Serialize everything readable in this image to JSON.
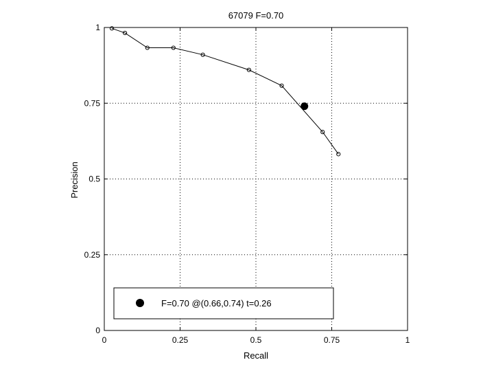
{
  "chart_data": {
    "type": "line",
    "title": "67079 F=0.70",
    "xlabel": "Recall",
    "ylabel": "Precision",
    "xlim": [
      0,
      1
    ],
    "ylim": [
      0,
      1
    ],
    "xticks": [
      0,
      0.25,
      0.5,
      0.75,
      1
    ],
    "yticks": [
      0,
      0.25,
      0.5,
      0.75,
      1
    ],
    "xtick_labels": [
      "0",
      "0.25",
      "0.5",
      "0.75",
      "1"
    ],
    "ytick_labels": [
      "0",
      "0.25",
      "0.5",
      "0.75",
      "1"
    ],
    "grid": true,
    "series": [
      {
        "points": [
          {
            "x": 0.025,
            "y": 0.997
          },
          {
            "x": 0.068,
            "y": 0.982
          },
          {
            "x": 0.142,
            "y": 0.933
          },
          {
            "x": 0.228,
            "y": 0.933
          },
          {
            "x": 0.325,
            "y": 0.91
          },
          {
            "x": 0.477,
            "y": 0.86
          },
          {
            "x": 0.585,
            "y": 0.808
          },
          {
            "x": 0.72,
            "y": 0.655
          },
          {
            "x": 0.772,
            "y": 0.582
          }
        ]
      }
    ],
    "best_point": {
      "x": 0.66,
      "y": 0.74
    },
    "legend": {
      "text": "F=0.70 @(0.66,0.74) t=0.26",
      "position": "lower-left"
    }
  }
}
